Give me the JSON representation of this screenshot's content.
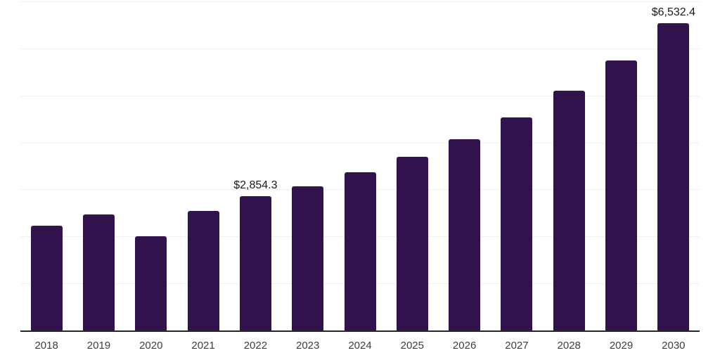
{
  "chart_data": {
    "type": "bar",
    "title": "",
    "subtitle": "",
    "xlabel": "",
    "ylabel": "",
    "ylim": [
      0,
      7000
    ],
    "gridline_step": 1000,
    "grid": "horizontal-only",
    "legend": "none",
    "y_axis_labels_visible": false,
    "categories": [
      "2018",
      "2019",
      "2020",
      "2021",
      "2022",
      "2023",
      "2024",
      "2025",
      "2026",
      "2027",
      "2028",
      "2029",
      "2030"
    ],
    "values": [
      2230,
      2465,
      2010,
      2545,
      2854.3,
      3065,
      3360,
      3695,
      4065,
      4535,
      5095,
      5750,
      6532.4
    ],
    "value_labels": {
      "2022": "$2,854.3",
      "2030": "$6,532.4"
    },
    "colors": {
      "bar": "#32124D",
      "gridline": "#f0f0f0",
      "axis_line": "#262626",
      "tick_label": "#3d3d3d",
      "value_label": "#1a1a1a",
      "background": "#ffffff"
    }
  }
}
